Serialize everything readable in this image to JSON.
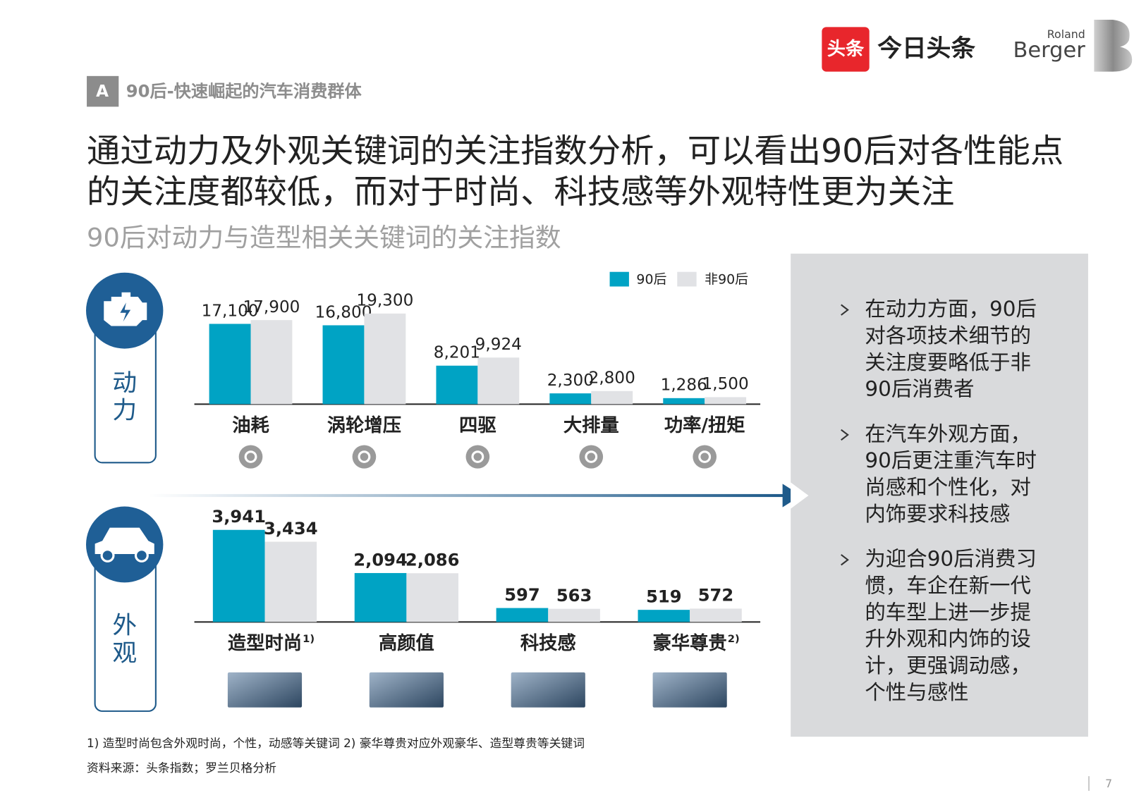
{
  "header": {
    "section": "A",
    "section_title": "90后-快速崛起的汽车消费群体",
    "title_lines": [
      "通过动力及外观关键词的关注指数分析，可以看出90后对各性能点",
      "的关注度都较低，而对于时尚、科技感等外观特性更为关注"
    ],
    "subtitle": "90后对动力与造型相关关键词的关注指数",
    "brand_cn_badge": "头条",
    "brand_cn": "今日头条",
    "brand_en_top": "Roland",
    "brand_en": "Berger"
  },
  "chart_data": [
    {
      "type": "bar",
      "group_label": "动力",
      "categories": [
        "油耗",
        "涡轮增压",
        "四驱",
        "大排量",
        "功率/扭矩"
      ],
      "series": [
        {
          "name": "90后",
          "color": "#00a3c4",
          "values": [
            17100,
            16800,
            8201,
            2300,
            1286
          ],
          "value_labels": [
            "17,100",
            "16,800",
            "8,201",
            "2,300",
            "1,286"
          ]
        },
        {
          "name": "非90后",
          "color": "#e1e2e5",
          "values": [
            17900,
            19300,
            9924,
            2800,
            1500
          ],
          "value_labels": [
            "17,900",
            "19,300",
            "9,924",
            "2,800",
            "1,500"
          ]
        }
      ]
    },
    {
      "type": "bar",
      "group_label": "外观",
      "categories": [
        "造型时尚",
        "高颜值",
        "科技感",
        "豪华尊贵"
      ],
      "category_footnote_marks": [
        "1)",
        null,
        null,
        "2)"
      ],
      "series": [
        {
          "name": "90后",
          "color": "#00a3c4",
          "values": [
            3941,
            2094,
            597,
            519
          ],
          "value_labels": [
            "3,941",
            "2,094",
            "597",
            "519"
          ]
        },
        {
          "name": "非90后",
          "color": "#e1e2e5",
          "values": [
            3434,
            2086,
            563,
            572
          ],
          "value_labels": [
            "3,434",
            "2,086",
            "563",
            "572"
          ]
        }
      ]
    }
  ],
  "panel": {
    "bullets": [
      {
        "lines": [
          "在动力方面，90后",
          "对各项技术细节的",
          "关注度要略低于非",
          "90后消费者"
        ]
      },
      {
        "lines": [
          "在汽车外观方面，",
          "90后更注重汽车时",
          "尚感和个性化，对",
          "内饰要求科技感"
        ]
      },
      {
        "lines": [
          "为迎合90后消费习",
          "惯，车企在新一代",
          "的车型上进一步提",
          "升外观和内饰的设",
          "计，更强调动感，",
          "个性与感性"
        ]
      }
    ]
  },
  "footer": {
    "notes": "1) 造型时尚包含外观时尚，个性，动感等关键词 2) 豪华尊贵对应外观豪华、造型尊贵等关键词",
    "source": "资料来源：头条指数；罗兰贝格分析",
    "page": "7"
  }
}
